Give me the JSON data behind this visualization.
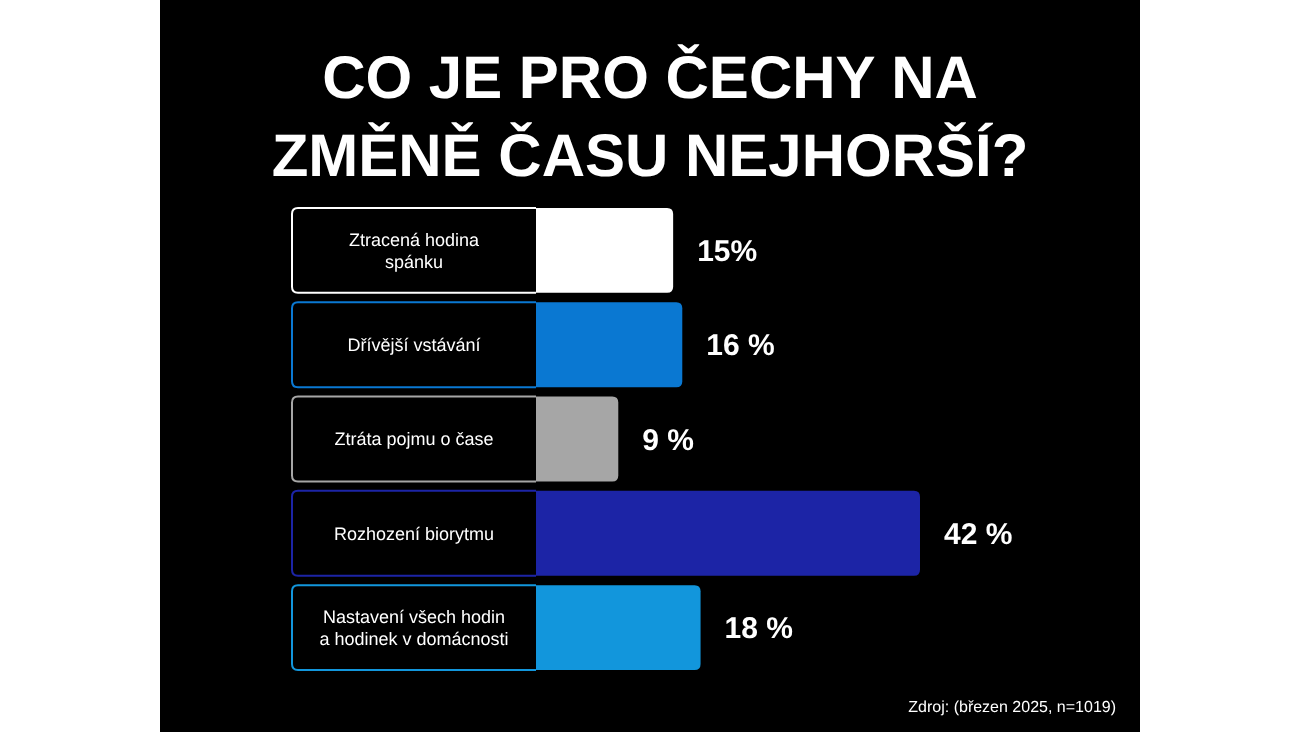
{
  "chart_data": {
    "type": "bar",
    "orientation": "horizontal",
    "title": "CO JE PRO ČECHY NA\nZMĚNĚ ČASU NEJHORŠÍ?",
    "categories": [
      "Ztracená hodina\nspánku",
      "Dřívější vstávání",
      "Ztráta pojmu o čase",
      "Rozhození biorytmu",
      "Nastavení všech hodin\na hodinek v domácnosti"
    ],
    "values": [
      15,
      16,
      9,
      42,
      18
    ],
    "colors": [
      "#ffffff",
      "#0a78d2",
      "#a6a6a6",
      "#1c24a6",
      "#1296dc"
    ],
    "value_labels": [
      "15%",
      "16 %",
      "9 %",
      "42 %",
      "18 %"
    ],
    "annotations": [
      "Zdroj: (březen 2025, n=1019)"
    ]
  }
}
